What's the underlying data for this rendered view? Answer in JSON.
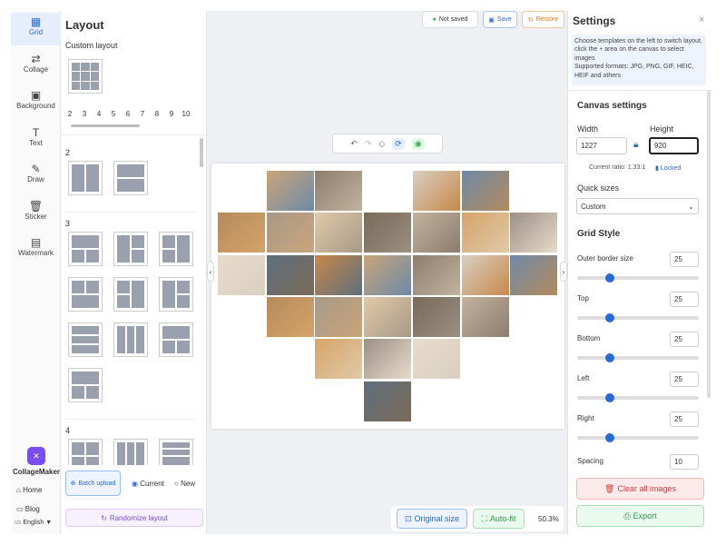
{
  "sidebar": {
    "nav": [
      "Grid",
      "Collage",
      "Background",
      "Text",
      "Draw",
      "Sticker",
      "Watermark"
    ],
    "brand": "CollageMaker",
    "links": [
      "Home",
      "Blog"
    ],
    "language_code": "us",
    "language": "English"
  },
  "layout_panel": {
    "title": "Layout",
    "custom_label": "Custom layout",
    "counts": [
      "2",
      "3",
      "4",
      "5",
      "6",
      "7",
      "8",
      "9",
      "10"
    ],
    "sections": [
      "2",
      "3",
      "4"
    ],
    "batch_upload": "Batch upload",
    "radio": [
      "Current",
      "New"
    ],
    "randomize": "Randomize layout"
  },
  "canvas": {
    "status": "Not saved",
    "save": "Save",
    "restore": "Restore",
    "original_size": "Original size",
    "auto_fit": "Auto-fit",
    "zoom": "50.3%"
  },
  "settings": {
    "title": "Settings",
    "info": "Choose templates on the left to switch layout, click the + area on the canvas to select images",
    "formats": "Supported formats: JPG, PNG, GIF, HEIC, HEIF and others",
    "canvas_heading": "Canvas settings",
    "width_label": "Width",
    "height_label": "Height",
    "width": "1227",
    "height": "920",
    "ratio": "Current ratio: 1.33:1",
    "locked": "Locked",
    "quick_sizes": "Quick sizes",
    "quick_size_value": "Custom",
    "grid_heading": "Grid Style",
    "fields": [
      {
        "label": "Outer border size",
        "value": "25"
      },
      {
        "label": "Top",
        "value": "25"
      },
      {
        "label": "Bottom",
        "value": "25"
      },
      {
        "label": "Left",
        "value": "25"
      },
      {
        "label": "Right",
        "value": "25"
      },
      {
        "label": "Spacing",
        "value": "10"
      }
    ],
    "clear": "Clear all images",
    "export": "Export"
  }
}
